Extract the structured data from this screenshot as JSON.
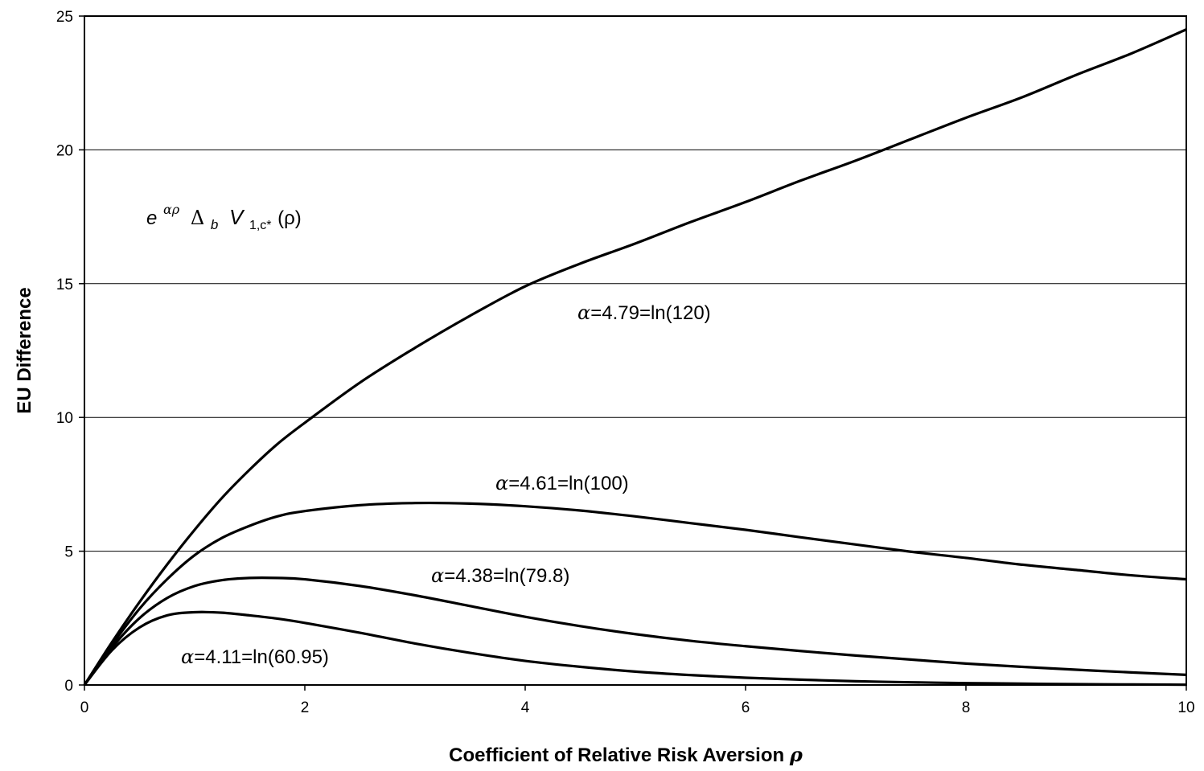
{
  "chart_data": {
    "type": "line",
    "xlabel": "Coefficient of Relative Risk Aversion",
    "xlabel_symbol": "ρ",
    "ylabel": "EU Difference",
    "xlim": [
      0,
      10
    ],
    "ylim": [
      0,
      25
    ],
    "x_ticks": [
      "0",
      "2",
      "4",
      "6",
      "8",
      "10"
    ],
    "y_ticks": [
      "0",
      "5",
      "10",
      "15",
      "20",
      "25"
    ],
    "grid": "horizontal",
    "line_color": "#000000",
    "formula": {
      "exp_base": "e",
      "exp": "αρ",
      "delta": "Δ",
      "delta_sub": "b",
      "v": "V",
      "v_sub": "1,c*",
      "arg": "(ρ)"
    },
    "series": [
      {
        "name": "α=4.79=ln(120)",
        "greek": "α",
        "label_rest": "=4.79=ln(120)",
        "x": [
          0,
          0.25,
          0.5,
          0.75,
          1,
          1.25,
          1.5,
          1.75,
          2,
          2.5,
          3,
          3.5,
          4,
          4.5,
          5,
          5.5,
          6,
          6.5,
          7,
          7.5,
          8,
          8.5,
          9,
          9.5,
          10
        ],
        "values": [
          0,
          1.6,
          3.1,
          4.5,
          5.8,
          7.0,
          8.05,
          9.0,
          9.8,
          11.3,
          12.6,
          13.8,
          14.9,
          15.75,
          16.5,
          17.3,
          18.05,
          18.85,
          19.6,
          20.4,
          21.2,
          21.95,
          22.8,
          23.6,
          24.5
        ]
      },
      {
        "name": "α=4.61=ln(100)",
        "greek": "α",
        "label_rest": "=4.61=ln(100)",
        "x": [
          0,
          0.25,
          0.5,
          0.75,
          1,
          1.25,
          1.5,
          1.75,
          2,
          2.5,
          3,
          3.5,
          4,
          4.5,
          5,
          5.5,
          6,
          6.5,
          7,
          7.5,
          8,
          8.5,
          9,
          9.5,
          10
        ],
        "values": [
          0,
          1.5,
          2.85,
          3.95,
          4.85,
          5.5,
          5.95,
          6.3,
          6.5,
          6.72,
          6.8,
          6.78,
          6.68,
          6.52,
          6.3,
          6.05,
          5.8,
          5.52,
          5.25,
          4.98,
          4.75,
          4.5,
          4.3,
          4.1,
          3.95
        ]
      },
      {
        "name": "α=4.38=ln(79.8)",
        "greek": "α",
        "label_rest": "=4.38=ln(79.8)",
        "x": [
          0,
          0.25,
          0.5,
          0.75,
          1,
          1.25,
          1.5,
          1.75,
          2,
          2.5,
          3,
          3.5,
          4,
          4.5,
          5,
          5.5,
          6,
          6.5,
          7,
          7.5,
          8,
          8.5,
          9,
          9.5,
          10
        ],
        "values": [
          0,
          1.4,
          2.5,
          3.25,
          3.7,
          3.92,
          4.0,
          4.0,
          3.95,
          3.7,
          3.35,
          2.95,
          2.55,
          2.2,
          1.9,
          1.65,
          1.45,
          1.27,
          1.1,
          0.95,
          0.8,
          0.68,
          0.57,
          0.47,
          0.38
        ]
      },
      {
        "name": "α=4.11=ln(60.95)",
        "greek": "α",
        "label_rest": "=4.11=ln(60.95)",
        "x": [
          0,
          0.25,
          0.5,
          0.75,
          1,
          1.25,
          1.5,
          1.75,
          2,
          2.5,
          3,
          3.5,
          4,
          4.5,
          5,
          5.5,
          6,
          6.5,
          7,
          7.5,
          8,
          8.5,
          9,
          9.5,
          10
        ],
        "values": [
          0,
          1.3,
          2.15,
          2.6,
          2.72,
          2.7,
          2.6,
          2.48,
          2.32,
          1.95,
          1.55,
          1.2,
          0.9,
          0.68,
          0.5,
          0.37,
          0.27,
          0.2,
          0.14,
          0.1,
          0.07,
          0.05,
          0.03,
          0.02,
          0.01
        ]
      }
    ]
  }
}
